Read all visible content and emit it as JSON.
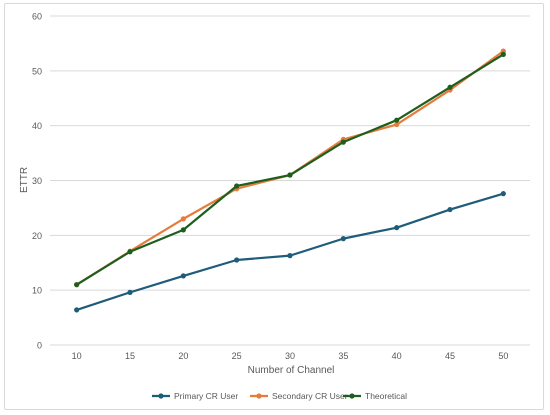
{
  "chart_data": {
    "type": "line",
    "title": "",
    "xlabel": "Number of Channel",
    "ylabel": "ETTR",
    "x": [
      10,
      15,
      20,
      25,
      30,
      35,
      40,
      45,
      50
    ],
    "ylim": [
      0,
      60
    ],
    "yticks": [
      0,
      10,
      20,
      30,
      40,
      50,
      60
    ],
    "grid": "horizontal",
    "legend_position": "bottom",
    "series": [
      {
        "name": "Primary CR User",
        "color": "#1f5c7a",
        "values": [
          6.4,
          9.6,
          12.6,
          15.5,
          16.3,
          19.4,
          21.4,
          24.7,
          27.6
        ]
      },
      {
        "name": "Secondary CR User",
        "color": "#e67c3b",
        "values": [
          11.0,
          17.1,
          23.0,
          28.5,
          31.0,
          37.5,
          40.2,
          46.5,
          53.6
        ]
      },
      {
        "name": "Theoretical",
        "color": "#1e5e1e",
        "values": [
          11.0,
          17.0,
          21.0,
          29.0,
          31.0,
          37.0,
          41.0,
          47.0,
          53.0
        ]
      }
    ]
  }
}
